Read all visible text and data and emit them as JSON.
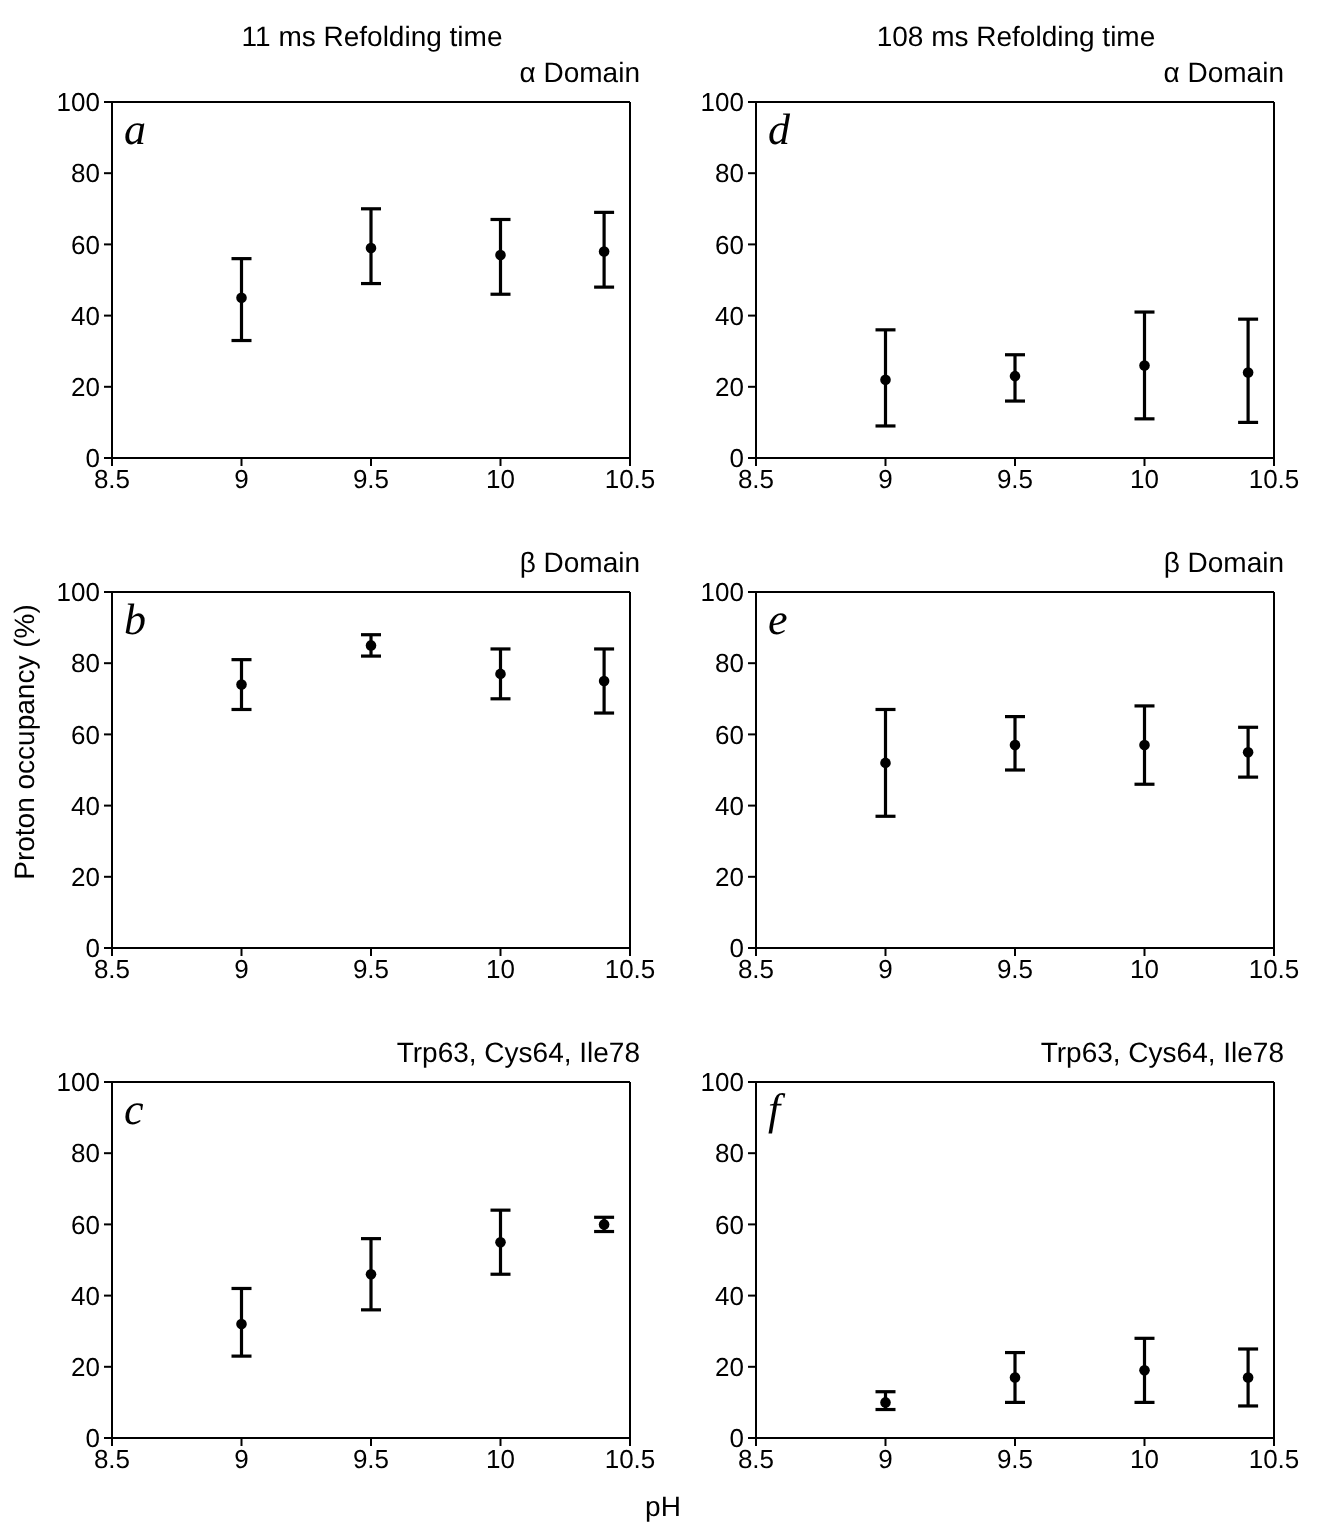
{
  "chart_data": [
    {
      "type": "scatter",
      "title": "11 ms Refolding time",
      "subtitle": "α Domain",
      "annotations": [
        "a"
      ],
      "x": [
        9,
        9.5,
        10,
        10.4
      ],
      "series": [
        {
          "color": "#000000",
          "values": [
            45,
            59,
            57,
            58
          ],
          "errors": [
            [
              33,
              56
            ],
            [
              49,
              70
            ],
            [
              46,
              67
            ],
            [
              48,
              69
            ]
          ]
        }
      ],
      "xlim": [
        8.5,
        10.5
      ],
      "xticks": [
        8.5,
        9,
        9.5,
        10,
        10.5
      ],
      "ylim": [
        0,
        100
      ],
      "yticks": [
        0,
        20,
        40,
        60,
        80,
        100
      ],
      "marker": "circle",
      "grid": false,
      "legend": false
    },
    {
      "type": "scatter",
      "title": "108 ms Refolding time",
      "subtitle": "α Domain",
      "annotations": [
        "d"
      ],
      "x": [
        9,
        9.5,
        10,
        10.4
      ],
      "series": [
        {
          "color": "#000000",
          "values": [
            22,
            23,
            26,
            24
          ],
          "errors": [
            [
              9,
              36
            ],
            [
              16,
              29
            ],
            [
              11,
              41
            ],
            [
              10,
              39
            ]
          ]
        }
      ],
      "xlim": [
        8.5,
        10.5
      ],
      "xticks": [
        8.5,
        9,
        9.5,
        10,
        10.5
      ],
      "ylim": [
        0,
        100
      ],
      "yticks": [
        0,
        20,
        40,
        60,
        80,
        100
      ],
      "marker": "circle",
      "grid": false,
      "legend": false
    },
    {
      "type": "scatter",
      "subtitle": "β Domain",
      "ylabel": "Proton occupancy (%)",
      "annotations": [
        "b"
      ],
      "x": [
        9,
        9.5,
        10,
        10.4
      ],
      "series": [
        {
          "color": "#000000",
          "values": [
            74,
            85,
            77,
            75
          ],
          "errors": [
            [
              67,
              81
            ],
            [
              82,
              88
            ],
            [
              70,
              84
            ],
            [
              66,
              84
            ]
          ]
        }
      ],
      "xlim": [
        8.5,
        10.5
      ],
      "xticks": [
        8.5,
        9,
        9.5,
        10,
        10.5
      ],
      "ylim": [
        0,
        100
      ],
      "yticks": [
        0,
        20,
        40,
        60,
        80,
        100
      ],
      "marker": "circle",
      "grid": false,
      "legend": false
    },
    {
      "type": "scatter",
      "subtitle": "β Domain",
      "annotations": [
        "e"
      ],
      "x": [
        9,
        9.5,
        10,
        10.4
      ],
      "series": [
        {
          "color": "#000000",
          "values": [
            52,
            57,
            57,
            55
          ],
          "errors": [
            [
              37,
              67
            ],
            [
              50,
              65
            ],
            [
              46,
              68
            ],
            [
              48,
              62
            ]
          ]
        }
      ],
      "xlim": [
        8.5,
        10.5
      ],
      "xticks": [
        8.5,
        9,
        9.5,
        10,
        10.5
      ],
      "ylim": [
        0,
        100
      ],
      "yticks": [
        0,
        20,
        40,
        60,
        80,
        100
      ],
      "marker": "circle",
      "grid": false,
      "legend": false
    },
    {
      "type": "scatter",
      "subtitle": "Trp63, Cys64, Ile78",
      "xlabel": "pH",
      "annotations": [
        "c"
      ],
      "x": [
        9,
        9.5,
        10,
        10.4
      ],
      "series": [
        {
          "color": "#000000",
          "values": [
            32,
            46,
            55,
            60
          ],
          "errors": [
            [
              23,
              42
            ],
            [
              36,
              56
            ],
            [
              46,
              64
            ],
            [
              58,
              62
            ]
          ]
        }
      ],
      "xlim": [
        8.5,
        10.5
      ],
      "xticks": [
        8.5,
        9,
        9.5,
        10,
        10.5
      ],
      "ylim": [
        0,
        100
      ],
      "yticks": [
        0,
        20,
        40,
        60,
        80,
        100
      ],
      "marker": "circle",
      "grid": false,
      "legend": false
    },
    {
      "type": "scatter",
      "subtitle": "Trp63, Cys64, Ile78",
      "annotations": [
        "f"
      ],
      "x": [
        9,
        9.5,
        10,
        10.4
      ],
      "series": [
        {
          "color": "#000000",
          "values": [
            10,
            17,
            19,
            17
          ],
          "errors": [
            [
              8,
              13
            ],
            [
              10,
              24
            ],
            [
              10,
              28
            ],
            [
              9,
              25
            ]
          ]
        }
      ],
      "xlim": [
        8.5,
        10.5
      ],
      "xticks": [
        8.5,
        9,
        9.5,
        10,
        10.5
      ],
      "ylim": [
        0,
        100
      ],
      "yticks": [
        0,
        20,
        40,
        60,
        80,
        100
      ],
      "marker": "circle",
      "grid": false,
      "legend": false
    }
  ]
}
